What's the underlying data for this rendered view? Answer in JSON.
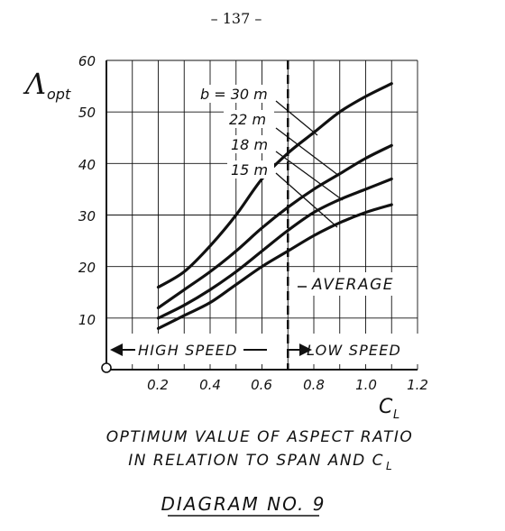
{
  "page": {
    "number": "– 137 –",
    "caption_line1": "OPTIMUM VALUE OF ASPECT RATIO",
    "caption_line2": "IN RELATION TO SPAN AND C",
    "caption_line2_sub": "L",
    "diagram_label": "DIAGRAM NO. 9"
  },
  "chart_data": {
    "type": "line",
    "ylabel": "Λ",
    "ylabel_sub": "opt",
    "xlabel": "C",
    "xlabel_sub": "L",
    "xlim": [
      0,
      1.2
    ],
    "ylim": [
      0,
      60
    ],
    "xticks": [
      "0.2",
      "0.4",
      "0.6",
      "0.8",
      "1.0",
      "1.2"
    ],
    "xtick_values": [
      0.2,
      0.4,
      0.6,
      0.8,
      1.0,
      1.2
    ],
    "yticks": [
      "10",
      "20",
      "30",
      "40",
      "50",
      "60"
    ],
    "ytick_values": [
      10,
      20,
      30,
      40,
      50,
      60
    ],
    "grid": true,
    "series": [
      {
        "name": "b = 30 m",
        "x": [
          0.2,
          0.3,
          0.4,
          0.5,
          0.6,
          0.7,
          0.8,
          0.9,
          1.0,
          1.1
        ],
        "values": [
          16,
          19,
          24,
          30,
          37,
          42,
          46,
          50,
          53,
          55.5
        ]
      },
      {
        "name": "22 m",
        "x": [
          0.2,
          0.3,
          0.4,
          0.5,
          0.6,
          0.7,
          0.8,
          0.9,
          1.0,
          1.1
        ],
        "values": [
          12,
          15.5,
          19,
          23,
          27.5,
          31.5,
          35,
          38,
          41,
          43.5
        ]
      },
      {
        "name": "18 m",
        "x": [
          0.2,
          0.3,
          0.4,
          0.5,
          0.6,
          0.7,
          0.8,
          0.9,
          1.0,
          1.1
        ],
        "values": [
          10,
          12.5,
          15.5,
          19,
          23,
          27,
          30.5,
          33,
          35,
          37
        ]
      },
      {
        "name": "15 m",
        "x": [
          0.2,
          0.3,
          0.4,
          0.5,
          0.6,
          0.7,
          0.8,
          0.9,
          1.0,
          1.1
        ],
        "values": [
          8,
          10.5,
          13,
          16.5,
          20,
          23,
          26,
          28.5,
          30.5,
          32
        ]
      }
    ],
    "average_line": {
      "x": 0.7,
      "label": "AVERAGE"
    },
    "regions": [
      {
        "label": "HIGH SPEED",
        "x_range": [
          0.2,
          0.7
        ]
      },
      {
        "label": "LOW SPEED",
        "x_range": [
          0.7,
          1.1
        ]
      }
    ]
  }
}
